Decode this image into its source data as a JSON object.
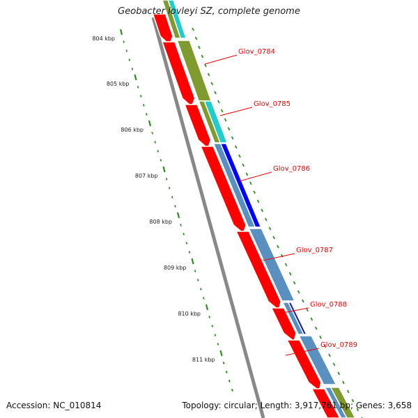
{
  "title": "Geobacter lovleyi SZ, complete genome",
  "footer": {
    "accession": "Accession: NC_010814",
    "stats": "Topology: circular; Length: 3,917,761 bp; Genes: 3,658"
  },
  "scale": {
    "unit": "kbp",
    "labels": [
      "804 kbp",
      "805 kbp",
      "806 kbp",
      "807 kbp",
      "808 kbp",
      "809 kbp",
      "810 kbp",
      "811 kbp"
    ],
    "positions_kbp": [
      804,
      805,
      806,
      807,
      808,
      809,
      810,
      811
    ],
    "minor_per_major": 5
  },
  "genes": [
    {
      "id": "Glov_0784",
      "label": "Glov_0784"
    },
    {
      "id": "Glov_0785",
      "label": "Glov_0785"
    },
    {
      "id": "Glov_0786",
      "label": "Glov_0786"
    },
    {
      "id": "Glov_0787",
      "label": "Glov_0787"
    },
    {
      "id": "Glov_0788",
      "label": "Glov_0788"
    },
    {
      "id": "Glov_0789",
      "label": "Glov_0789"
    }
  ],
  "colors": {
    "cds": "#ff0000",
    "backbone": "#888888",
    "tick": "#2e8b22",
    "label": "#ee0000",
    "olive": "#7f9a2e",
    "cyan": "#22cccc",
    "blue": "#0000ff",
    "steel": "#5a90c0",
    "navy": "#1e1e90"
  }
}
